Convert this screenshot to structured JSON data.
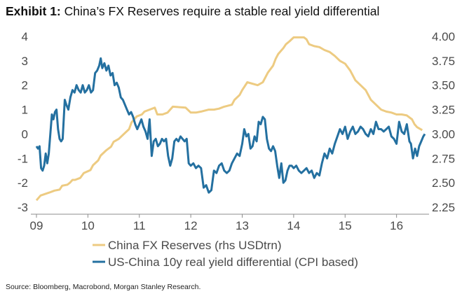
{
  "title": {
    "lead": "Exhibit 1:",
    "rest": "China’s FX Reserves require a stable real yield differential"
  },
  "source": "Source: Bloomberg, Macrobond, Morgan Stanley Research.",
  "colors": {
    "fx_reserves": "#EDCB82",
    "yield_diff": "#2470A0",
    "axis": "#8c8c8c",
    "text": "#4a4a4a"
  },
  "chart_data": {
    "type": "line",
    "x_tick_labels": [
      "09",
      "10",
      "11",
      "12",
      "13",
      "14",
      "15",
      "16"
    ],
    "x_range": [
      2009.0,
      2016.55
    ],
    "left_axis": {
      "ticks": [
        "4",
        "3",
        "2",
        "1",
        "0",
        "-1",
        "-2",
        "-3"
      ],
      "ylim": [
        -3,
        4
      ]
    },
    "right_axis": {
      "ticks": [
        "4.00",
        "3.75",
        "3.50",
        "3.25",
        "3.00",
        "2.75",
        "2.50",
        "2.25"
      ],
      "ylim": [
        2.25,
        4.0
      ]
    },
    "grid": false,
    "legend_position": "bottom",
    "series": [
      {
        "name": "China FX Reserves (rhs USDtrn)",
        "axis": "right",
        "points": [
          [
            2009.0,
            2.32
          ],
          [
            2009.08,
            2.37
          ],
          [
            2009.25,
            2.4
          ],
          [
            2009.35,
            2.42
          ],
          [
            2009.45,
            2.43
          ],
          [
            2009.5,
            2.47
          ],
          [
            2009.6,
            2.48
          ],
          [
            2009.65,
            2.5
          ],
          [
            2009.7,
            2.53
          ],
          [
            2009.75,
            2.53
          ],
          [
            2009.85,
            2.55
          ],
          [
            2009.92,
            2.6
          ],
          [
            2010.05,
            2.63
          ],
          [
            2010.1,
            2.68
          ],
          [
            2010.2,
            2.73
          ],
          [
            2010.25,
            2.78
          ],
          [
            2010.35,
            2.83
          ],
          [
            2010.45,
            2.87
          ],
          [
            2010.5,
            2.92
          ],
          [
            2010.6,
            2.95
          ],
          [
            2010.7,
            3.0
          ],
          [
            2010.8,
            3.05
          ],
          [
            2010.85,
            3.12
          ],
          [
            2010.95,
            3.18
          ],
          [
            2011.05,
            3.2
          ],
          [
            2011.1,
            3.23
          ],
          [
            2011.2,
            3.25
          ],
          [
            2011.3,
            3.27
          ],
          [
            2011.35,
            3.2
          ],
          [
            2011.45,
            3.2
          ],
          [
            2011.55,
            3.22
          ],
          [
            2011.65,
            3.28
          ],
          [
            2011.9,
            3.27
          ],
          [
            2012.0,
            3.22
          ],
          [
            2012.1,
            3.22
          ],
          [
            2012.2,
            3.23
          ],
          [
            2012.35,
            3.25
          ],
          [
            2012.45,
            3.25
          ],
          [
            2012.55,
            3.26
          ],
          [
            2012.65,
            3.28
          ],
          [
            2012.8,
            3.3
          ],
          [
            2012.85,
            3.35
          ],
          [
            2012.95,
            3.4
          ],
          [
            2013.0,
            3.45
          ],
          [
            2013.1,
            3.53
          ],
          [
            2013.3,
            3.5
          ],
          [
            2013.4,
            3.53
          ],
          [
            2013.5,
            3.63
          ],
          [
            2013.6,
            3.7
          ],
          [
            2013.65,
            3.77
          ],
          [
            2013.7,
            3.82
          ],
          [
            2013.8,
            3.88
          ],
          [
            2013.85,
            3.92
          ],
          [
            2013.92,
            3.95
          ],
          [
            2014.0,
            3.99
          ],
          [
            2014.1,
            3.99
          ],
          [
            2014.2,
            3.99
          ],
          [
            2014.25,
            3.97
          ],
          [
            2014.3,
            3.92
          ],
          [
            2014.4,
            3.9
          ],
          [
            2014.5,
            3.89
          ],
          [
            2014.6,
            3.86
          ],
          [
            2014.7,
            3.84
          ],
          [
            2014.8,
            3.8
          ],
          [
            2014.9,
            3.75
          ],
          [
            2015.0,
            3.72
          ],
          [
            2015.1,
            3.65
          ],
          [
            2015.2,
            3.55
          ],
          [
            2015.3,
            3.5
          ],
          [
            2015.4,
            3.45
          ],
          [
            2015.5,
            3.35
          ],
          [
            2015.6,
            3.3
          ],
          [
            2015.7,
            3.25
          ],
          [
            2015.8,
            3.23
          ],
          [
            2015.9,
            3.22
          ],
          [
            2016.0,
            3.2
          ],
          [
            2016.1,
            3.2
          ],
          [
            2016.2,
            3.19
          ],
          [
            2016.3,
            3.15
          ],
          [
            2016.35,
            3.1
          ],
          [
            2016.4,
            3.07
          ],
          [
            2016.5,
            3.04
          ]
        ]
      },
      {
        "name": "US-China 10y real yield differential (CPI based)",
        "axis": "left",
        "points": [
          [
            2009.0,
            -0.5
          ],
          [
            2009.03,
            -0.6
          ],
          [
            2009.06,
            -0.5
          ],
          [
            2009.09,
            -1.4
          ],
          [
            2009.12,
            -1.5
          ],
          [
            2009.15,
            -1.3
          ],
          [
            2009.18,
            -0.8
          ],
          [
            2009.21,
            -1.2
          ],
          [
            2009.24,
            -0.8
          ],
          [
            2009.27,
            0.0
          ],
          [
            2009.3,
            0.8
          ],
          [
            2009.33,
            0.6
          ],
          [
            2009.36,
            0.9
          ],
          [
            2009.39,
            1.0
          ],
          [
            2009.42,
            0.2
          ],
          [
            2009.45,
            -0.2
          ],
          [
            2009.48,
            -0.3
          ],
          [
            2009.51,
            -0.2
          ],
          [
            2009.55,
            1.4
          ],
          [
            2009.58,
            1.2
          ],
          [
            2009.62,
            1.0
          ],
          [
            2009.66,
            1.5
          ],
          [
            2009.7,
            1.8
          ],
          [
            2009.74,
            1.7
          ],
          [
            2009.78,
            2.0
          ],
          [
            2009.82,
            1.8
          ],
          [
            2009.86,
            1.7
          ],
          [
            2009.9,
            2.0
          ],
          [
            2009.94,
            1.7
          ],
          [
            2009.98,
            1.8
          ],
          [
            2010.02,
            2.0
          ],
          [
            2010.06,
            1.7
          ],
          [
            2010.1,
            1.8
          ],
          [
            2010.14,
            2.5
          ],
          [
            2010.18,
            2.6
          ],
          [
            2010.22,
            2.8
          ],
          [
            2010.25,
            3.1
          ],
          [
            2010.28,
            2.7
          ],
          [
            2010.32,
            2.9
          ],
          [
            2010.36,
            2.6
          ],
          [
            2010.4,
            2.8
          ],
          [
            2010.44,
            2.4
          ],
          [
            2010.48,
            2.5
          ],
          [
            2010.52,
            2.0
          ],
          [
            2010.56,
            2.1
          ],
          [
            2010.6,
            1.9
          ],
          [
            2010.64,
            1.5
          ],
          [
            2010.68,
            1.4
          ],
          [
            2010.72,
            1.2
          ],
          [
            2010.76,
            1.0
          ],
          [
            2010.8,
            0.8
          ],
          [
            2010.84,
            0.9
          ],
          [
            2010.88,
            0.7
          ],
          [
            2010.92,
            0.4
          ],
          [
            2010.96,
            0.2
          ],
          [
            2011.0,
            0.4
          ],
          [
            2011.04,
            0.6
          ],
          [
            2011.08,
            0.3
          ],
          [
            2011.12,
            0.1
          ],
          [
            2011.16,
            -0.2
          ],
          [
            2011.2,
            0.6
          ],
          [
            2011.24,
            -0.9
          ],
          [
            2011.28,
            -0.3
          ],
          [
            2011.32,
            -0.2
          ],
          [
            2011.36,
            -0.5
          ],
          [
            2011.4,
            -0.4
          ],
          [
            2011.44,
            -0.2
          ],
          [
            2011.48,
            -0.3
          ],
          [
            2011.52,
            -0.2
          ],
          [
            2011.56,
            -0.9
          ],
          [
            2011.6,
            -1.3
          ],
          [
            2011.64,
            -1.0
          ],
          [
            2011.68,
            -0.3
          ],
          [
            2011.72,
            -0.2
          ],
          [
            2011.76,
            -0.3
          ],
          [
            2011.8,
            -0.1
          ],
          [
            2011.84,
            -0.2
          ],
          [
            2011.88,
            -0.3
          ],
          [
            2011.92,
            -0.2
          ],
          [
            2011.96,
            -1.2
          ],
          [
            2012.0,
            -1.3
          ],
          [
            2012.05,
            -1.2
          ],
          [
            2012.1,
            -1.4
          ],
          [
            2012.15,
            -1.3
          ],
          [
            2012.2,
            -1.4
          ],
          [
            2012.25,
            -2.2
          ],
          [
            2012.3,
            -2.1
          ],
          [
            2012.35,
            -2.4
          ],
          [
            2012.4,
            -2.3
          ],
          [
            2012.45,
            -1.5
          ],
          [
            2012.5,
            -1.6
          ],
          [
            2012.55,
            -1.3
          ],
          [
            2012.6,
            -1.2
          ],
          [
            2012.65,
            -1.5
          ],
          [
            2012.7,
            -1.6
          ],
          [
            2012.75,
            -1.5
          ],
          [
            2012.8,
            -1.2
          ],
          [
            2012.85,
            -1.0
          ],
          [
            2012.9,
            -0.8
          ],
          [
            2012.95,
            -0.9
          ],
          [
            2013.0,
            -0.4
          ],
          [
            2013.04,
            0.2
          ],
          [
            2013.08,
            -0.1
          ],
          [
            2013.12,
            0.0
          ],
          [
            2013.16,
            -0.6
          ],
          [
            2013.2,
            -0.5
          ],
          [
            2013.24,
            -0.1
          ],
          [
            2013.28,
            -0.3
          ],
          [
            2013.32,
            0.5
          ],
          [
            2013.36,
            0.4
          ],
          [
            2013.4,
            0.7
          ],
          [
            2013.44,
            0.6
          ],
          [
            2013.48,
            -0.2
          ],
          [
            2013.52,
            -0.6
          ],
          [
            2013.56,
            -0.7
          ],
          [
            2013.6,
            -0.5
          ],
          [
            2013.64,
            -0.7
          ],
          [
            2013.68,
            -1.3
          ],
          [
            2013.72,
            -1.8
          ],
          [
            2013.76,
            -1.2
          ],
          [
            2013.8,
            -2.0
          ],
          [
            2013.84,
            -1.9
          ],
          [
            2013.88,
            -1.5
          ],
          [
            2013.92,
            -1.3
          ],
          [
            2013.96,
            -1.3
          ],
          [
            2014.0,
            -1.4
          ],
          [
            2014.05,
            -1.3
          ],
          [
            2014.1,
            -1.5
          ],
          [
            2014.15,
            -1.6
          ],
          [
            2014.2,
            -1.5
          ],
          [
            2014.25,
            -1.4
          ],
          [
            2014.3,
            -1.6
          ],
          [
            2014.35,
            -1.5
          ],
          [
            2014.4,
            -1.8
          ],
          [
            2014.45,
            -1.6
          ],
          [
            2014.5,
            -1.7
          ],
          [
            2014.55,
            -1.2
          ],
          [
            2014.6,
            -0.8
          ],
          [
            2014.65,
            -1.0
          ],
          [
            2014.7,
            -0.6
          ],
          [
            2014.75,
            -0.8
          ],
          [
            2014.8,
            -0.4
          ],
          [
            2014.85,
            -0.1
          ],
          [
            2014.9,
            0.2
          ],
          [
            2014.95,
            0.0
          ],
          [
            2015.0,
            0.3
          ],
          [
            2015.05,
            -0.2
          ],
          [
            2015.1,
            0.1
          ],
          [
            2015.15,
            0.3
          ],
          [
            2015.2,
            0.0
          ],
          [
            2015.25,
            0.1
          ],
          [
            2015.3,
            0.3
          ],
          [
            2015.35,
            0.2
          ],
          [
            2015.4,
            0.0
          ],
          [
            2015.45,
            -0.1
          ],
          [
            2015.5,
            0.2
          ],
          [
            2015.55,
            0.0
          ],
          [
            2015.6,
            0.5
          ],
          [
            2015.65,
            0.2
          ],
          [
            2015.7,
            0.2
          ],
          [
            2015.75,
            0.1
          ],
          [
            2015.8,
            0.2
          ],
          [
            2015.85,
            0.3
          ],
          [
            2015.9,
            -0.1
          ],
          [
            2015.95,
            -0.2
          ],
          [
            2016.0,
            -0.4
          ],
          [
            2016.05,
            0.5
          ],
          [
            2016.1,
            0.1
          ],
          [
            2016.15,
            0.0
          ],
          [
            2016.2,
            0.4
          ],
          [
            2016.25,
            -0.3
          ],
          [
            2016.28,
            -0.4
          ],
          [
            2016.32,
            -1.0
          ],
          [
            2016.36,
            -0.6
          ],
          [
            2016.4,
            -0.9
          ],
          [
            2016.44,
            -0.5
          ],
          [
            2016.48,
            -0.3
          ],
          [
            2016.52,
            -0.1
          ],
          [
            2016.55,
            0.0
          ]
        ]
      }
    ]
  }
}
